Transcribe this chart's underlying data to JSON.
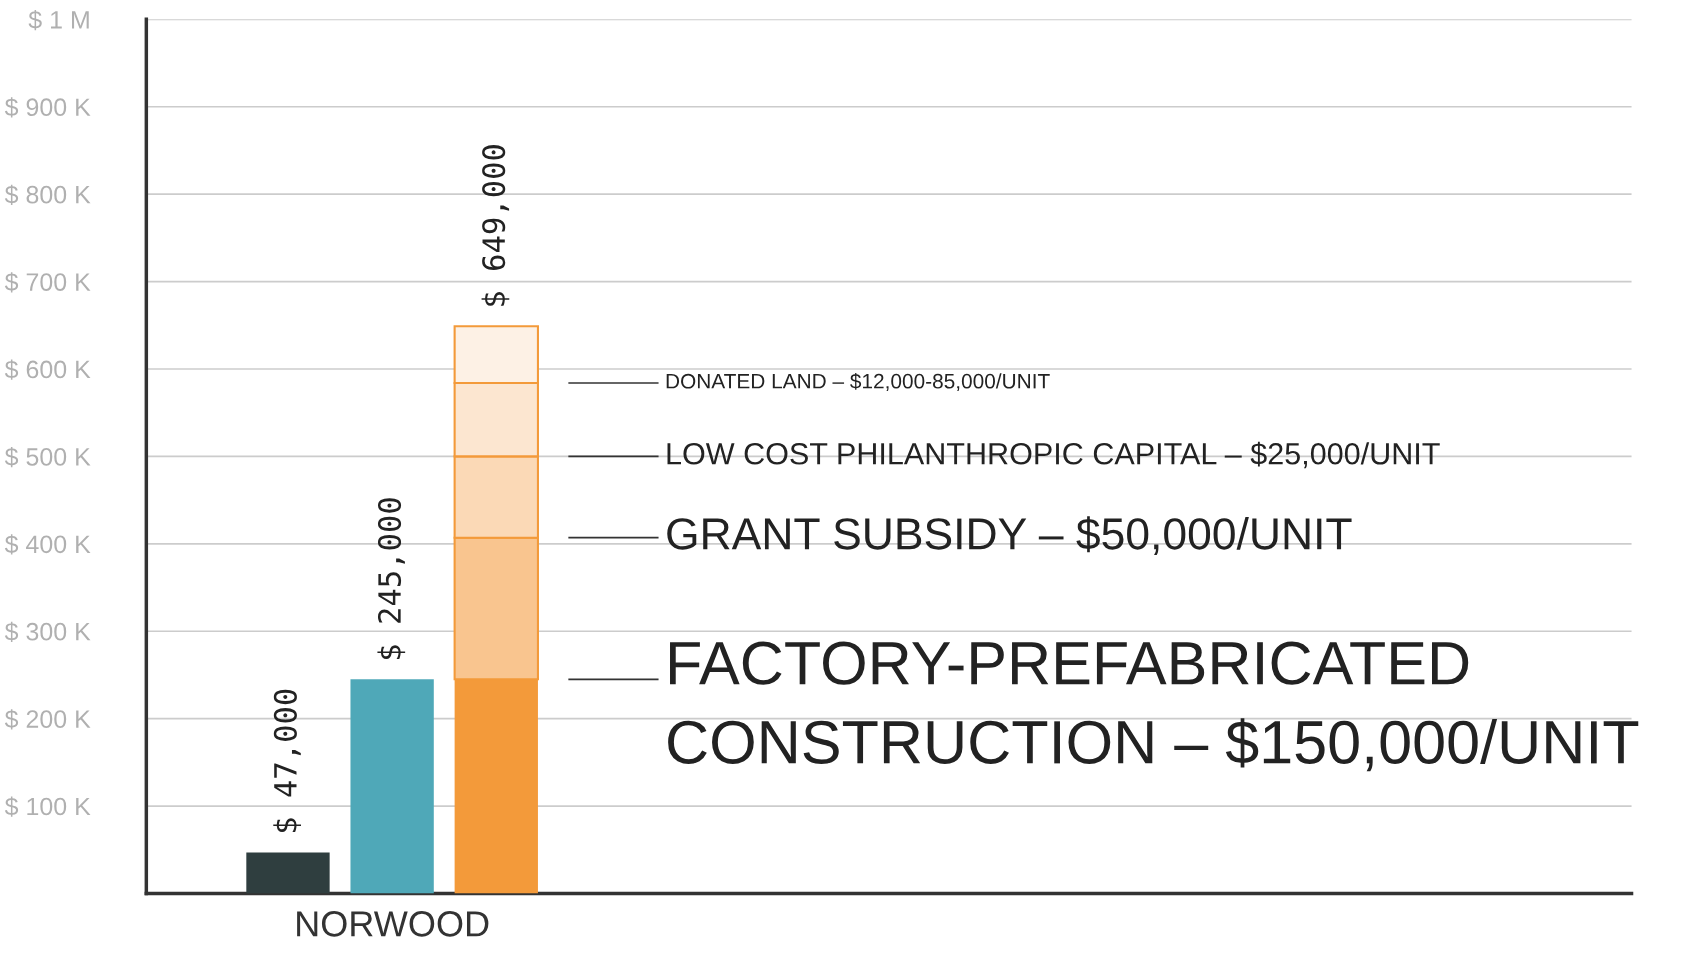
{
  "chart_data": {
    "type": "bar",
    "stacked": true,
    "categories": [
      null,
      "NORWOOD",
      null
    ],
    "series": [
      {
        "colors": [
          "#2f3e3f",
          "#4fa8b8",
          "#f39a3a"
        ],
        "values": [
          47000,
          245000,
          245000
        ]
      },
      {
        "color": "#f9c58f",
        "values": [
          null,
          null,
          162000
        ]
      },
      {
        "color": "#fbd9b6",
        "values": [
          null,
          null,
          93000
        ]
      },
      {
        "color": "#fce6d0",
        "values": [
          null,
          null,
          84000
        ]
      },
      {
        "color": "#fdf1e5",
        "values": [
          null,
          null,
          65000
        ]
      }
    ],
    "totals": [
      "$ 47,000",
      "$ 245,000",
      "$ 649,000"
    ],
    "ylim": [
      0,
      1000000
    ],
    "yticks": [
      {
        "value": 100000,
        "label": "$ 100 K"
      },
      {
        "value": 200000,
        "label": "$ 200 K"
      },
      {
        "value": 300000,
        "label": "$ 300 K"
      },
      {
        "value": 400000,
        "label": "$ 400 K"
      },
      {
        "value": 500000,
        "label": "$ 500 K"
      },
      {
        "value": 600000,
        "label": "$ 600 K"
      },
      {
        "value": 700000,
        "label": "$ 700 K"
      },
      {
        "value": 800000,
        "label": "$ 800 K"
      },
      {
        "value": 900000,
        "label": "$ 900 K"
      },
      {
        "value": 1000000,
        "label": "$ 1 M"
      }
    ],
    "grid": "y",
    "annotations": [
      "DONATED LAND – $12,000-85,000/UNIT",
      "LOW COST PHILANTHROPIC CAPITAL – $25,000/UNIT",
      "GRANT SUBSIDY – $50,000/UNIT",
      "FACTORY-PREFABRICATED CONSTRUCTION – $150,000/UNIT"
    ]
  }
}
